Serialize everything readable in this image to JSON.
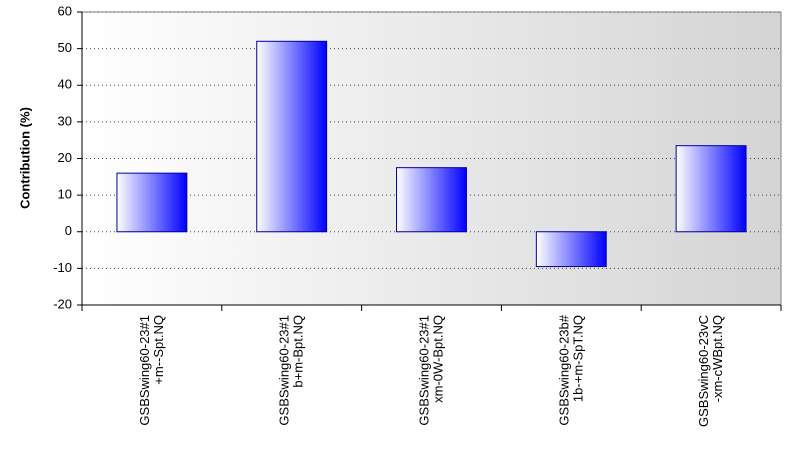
{
  "chart_data": {
    "type": "bar",
    "y_label": "Contribution (%)",
    "categories": [
      [
        "GSBSwing60-23#1",
        "+m--Spt.NQ"
      ],
      [
        "GSBSwing60-23#1",
        "b+m-Bpt.NQ"
      ],
      [
        "GSBSwing60-23#1",
        "xm-0W-Bpt.NQ"
      ],
      [
        "GSBSwing60-23b#",
        "1b-+m-SpT.NQ"
      ],
      [
        "GSBSwing60-23vC",
        "-xm-cWBpt.NQ"
      ]
    ],
    "values": [
      16,
      52,
      17.5,
      -9.5,
      23.5
    ],
    "color": "#0000ff",
    "ylim": [
      -20,
      60
    ],
    "yticks": [
      -20,
      -10,
      0,
      10,
      20,
      30,
      40,
      50,
      60
    ],
    "grid": true
  }
}
